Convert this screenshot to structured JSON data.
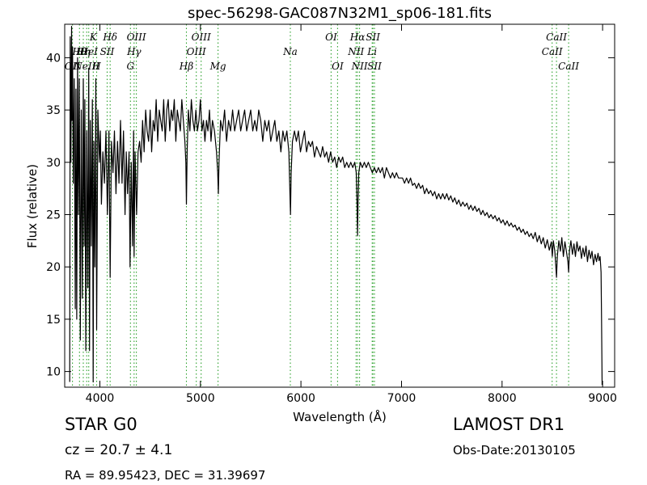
{
  "chart_data": {
    "type": "line",
    "title": "spec-56298-GAC087N32M1_sp06-181.fits",
    "xlabel": "Wavelength (Å)",
    "ylabel": "Flux (relative)",
    "xlim": [
      3650,
      9120
    ],
    "ylim": [
      8.5,
      43.2
    ],
    "xticks": [
      4000,
      5000,
      6000,
      7000,
      8000,
      9000
    ],
    "yticks": [
      10,
      15,
      20,
      25,
      30,
      35,
      40
    ],
    "grid": false,
    "line_color": "#000000",
    "marker_color": "#2ca02c",
    "spectrum": [
      [
        3700,
        9
      ],
      [
        3705,
        42
      ],
      [
        3712,
        30
      ],
      [
        3718,
        43
      ],
      [
        3722,
        34
      ],
      [
        3728,
        41
      ],
      [
        3735,
        28
      ],
      [
        3745,
        38
      ],
      [
        3755,
        16
      ],
      [
        3762,
        37
      ],
      [
        3770,
        15
      ],
      [
        3778,
        40
      ],
      [
        3786,
        25
      ],
      [
        3795,
        38
      ],
      [
        3805,
        13
      ],
      [
        3815,
        35
      ],
      [
        3825,
        17
      ],
      [
        3835,
        38
      ],
      [
        3843,
        22
      ],
      [
        3850,
        36
      ],
      [
        3860,
        12
      ],
      [
        3870,
        33
      ],
      [
        3880,
        18
      ],
      [
        3889,
        39
      ],
      [
        3897,
        12
      ],
      [
        3905,
        34
      ],
      [
        3915,
        22
      ],
      [
        3925,
        36
      ],
      [
        3933,
        9
      ],
      [
        3940,
        32
      ],
      [
        3950,
        20
      ],
      [
        3960,
        38
      ],
      [
        3968,
        14
      ],
      [
        3980,
        35
      ],
      [
        3995,
        30
      ],
      [
        4005,
        33
      ],
      [
        4015,
        26
      ],
      [
        4030,
        31
      ],
      [
        4045,
        28
      ],
      [
        4060,
        33
      ],
      [
        4075,
        25
      ],
      [
        4090,
        33
      ],
      [
        4102,
        19
      ],
      [
        4115,
        32
      ],
      [
        4130,
        29
      ],
      [
        4145,
        33
      ],
      [
        4160,
        27
      ],
      [
        4175,
        32
      ],
      [
        4190,
        28
      ],
      [
        4205,
        34
      ],
      [
        4220,
        28
      ],
      [
        4235,
        33
      ],
      [
        4250,
        25
      ],
      [
        4262,
        31
      ],
      [
        4275,
        27
      ],
      [
        4290,
        31
      ],
      [
        4300,
        20
      ],
      [
        4312,
        30
      ],
      [
        4325,
        22
      ],
      [
        4335,
        33
      ],
      [
        4340,
        21
      ],
      [
        4350,
        31
      ],
      [
        4365,
        25
      ],
      [
        4380,
        31
      ],
      [
        4395,
        32
      ],
      [
        4410,
        30
      ],
      [
        4425,
        34
      ],
      [
        4440,
        31
      ],
      [
        4455,
        35
      ],
      [
        4470,
        33
      ],
      [
        4485,
        32
      ],
      [
        4500,
        35
      ],
      [
        4515,
        31
      ],
      [
        4530,
        34
      ],
      [
        4545,
        33
      ],
      [
        4560,
        36
      ],
      [
        4575,
        32
      ],
      [
        4590,
        35
      ],
      [
        4605,
        34
      ],
      [
        4620,
        33
      ],
      [
        4635,
        36
      ],
      [
        4650,
        32
      ],
      [
        4665,
        35
      ],
      [
        4680,
        36
      ],
      [
        4695,
        33
      ],
      [
        4710,
        35
      ],
      [
        4725,
        34
      ],
      [
        4740,
        36
      ],
      [
        4755,
        32
      ],
      [
        4770,
        35
      ],
      [
        4785,
        34
      ],
      [
        4800,
        33
      ],
      [
        4815,
        36
      ],
      [
        4830,
        34
      ],
      [
        4845,
        32
      ],
      [
        4855,
        30
      ],
      [
        4861,
        26
      ],
      [
        4868,
        31
      ],
      [
        4880,
        35
      ],
      [
        4895,
        33
      ],
      [
        4910,
        36
      ],
      [
        4925,
        34
      ],
      [
        4940,
        33
      ],
      [
        4955,
        35
      ],
      [
        4970,
        33
      ],
      [
        4985,
        34
      ],
      [
        5000,
        36
      ],
      [
        5015,
        33
      ],
      [
        5030,
        34
      ],
      [
        5045,
        32
      ],
      [
        5060,
        34
      ],
      [
        5075,
        33
      ],
      [
        5090,
        35
      ],
      [
        5105,
        32
      ],
      [
        5120,
        34
      ],
      [
        5140,
        33
      ],
      [
        5160,
        31
      ],
      [
        5172,
        29
      ],
      [
        5178,
        27
      ],
      [
        5185,
        30
      ],
      [
        5200,
        34
      ],
      [
        5220,
        33
      ],
      [
        5240,
        35
      ],
      [
        5260,
        32
      ],
      [
        5280,
        34
      ],
      [
        5300,
        33
      ],
      [
        5320,
        35
      ],
      [
        5340,
        33
      ],
      [
        5360,
        34
      ],
      [
        5380,
        35
      ],
      [
        5400,
        33
      ],
      [
        5420,
        34
      ],
      [
        5440,
        35
      ],
      [
        5460,
        33
      ],
      [
        5480,
        34
      ],
      [
        5500,
        35
      ],
      [
        5520,
        33
      ],
      [
        5540,
        34
      ],
      [
        5560,
        33
      ],
      [
        5580,
        35
      ],
      [
        5600,
        34
      ],
      [
        5620,
        32
      ],
      [
        5640,
        34
      ],
      [
        5660,
        33
      ],
      [
        5680,
        34
      ],
      [
        5700,
        32
      ],
      [
        5720,
        33
      ],
      [
        5740,
        34
      ],
      [
        5760,
        32
      ],
      [
        5780,
        33
      ],
      [
        5800,
        31
      ],
      [
        5820,
        33
      ],
      [
        5840,
        32
      ],
      [
        5860,
        33
      ],
      [
        5880,
        31
      ],
      [
        5890,
        27
      ],
      [
        5896,
        25
      ],
      [
        5902,
        29
      ],
      [
        5915,
        32
      ],
      [
        5935,
        33
      ],
      [
        5955,
        32
      ],
      [
        5975,
        33
      ],
      [
        5995,
        31
      ],
      [
        6015,
        32
      ],
      [
        6035,
        33
      ],
      [
        6055,
        31
      ],
      [
        6075,
        32
      ],
      [
        6095,
        31.5
      ],
      [
        6115,
        32
      ],
      [
        6135,
        30.5
      ],
      [
        6155,
        31.5
      ],
      [
        6175,
        31
      ],
      [
        6195,
        30.5
      ],
      [
        6215,
        31.5
      ],
      [
        6235,
        30.5
      ],
      [
        6255,
        31
      ],
      [
        6275,
        30
      ],
      [
        6295,
        31
      ],
      [
        6315,
        30
      ],
      [
        6335,
        30.5
      ],
      [
        6355,
        29.5
      ],
      [
        6375,
        30.5
      ],
      [
        6395,
        30
      ],
      [
        6415,
        30.5
      ],
      [
        6435,
        29.5
      ],
      [
        6455,
        30
      ],
      [
        6475,
        29.5
      ],
      [
        6495,
        30
      ],
      [
        6515,
        29.5
      ],
      [
        6535,
        30
      ],
      [
        6550,
        29
      ],
      [
        6558,
        26
      ],
      [
        6563,
        23
      ],
      [
        6568,
        26
      ],
      [
        6575,
        29
      ],
      [
        6590,
        30
      ],
      [
        6610,
        29.5
      ],
      [
        6630,
        30
      ],
      [
        6650,
        29.5
      ],
      [
        6670,
        30
      ],
      [
        6690,
        29.5
      ],
      [
        6710,
        29
      ],
      [
        6730,
        29.5
      ],
      [
        6750,
        29
      ],
      [
        6770,
        29.5
      ],
      [
        6790,
        29
      ],
      [
        6810,
        29.5
      ],
      [
        6830,
        28.5
      ],
      [
        6850,
        29.5
      ],
      [
        6870,
        29
      ],
      [
        6890,
        28.5
      ],
      [
        6910,
        29
      ],
      [
        6930,
        28.5
      ],
      [
        6950,
        29
      ],
      [
        6970,
        28.5
      ],
      [
        6990,
        28.5
      ],
      [
        7010,
        28.5
      ],
      [
        7030,
        28
      ],
      [
        7050,
        28.5
      ],
      [
        7070,
        28
      ],
      [
        7090,
        28.5
      ],
      [
        7110,
        27.8
      ],
      [
        7130,
        28
      ],
      [
        7150,
        27.5
      ],
      [
        7170,
        28
      ],
      [
        7190,
        27.5
      ],
      [
        7210,
        27.8
      ],
      [
        7230,
        27
      ],
      [
        7250,
        27.5
      ],
      [
        7270,
        27
      ],
      [
        7290,
        27.3
      ],
      [
        7310,
        26.8
      ],
      [
        7330,
        27.2
      ],
      [
        7350,
        26.5
      ],
      [
        7370,
        27
      ],
      [
        7390,
        26.5
      ],
      [
        7410,
        27
      ],
      [
        7430,
        26.5
      ],
      [
        7450,
        27
      ],
      [
        7470,
        26.4
      ],
      [
        7490,
        26.8
      ],
      [
        7510,
        26.2
      ],
      [
        7530,
        26.6
      ],
      [
        7550,
        26
      ],
      [
        7570,
        26.4
      ],
      [
        7590,
        25.8
      ],
      [
        7610,
        26.2
      ],
      [
        7630,
        25.8
      ],
      [
        7650,
        26.1
      ],
      [
        7670,
        25.5
      ],
      [
        7690,
        25.9
      ],
      [
        7710,
        25.4
      ],
      [
        7730,
        25.8
      ],
      [
        7750,
        25.3
      ],
      [
        7770,
        25.6
      ],
      [
        7790,
        25
      ],
      [
        7810,
        25.4
      ],
      [
        7830,
        24.9
      ],
      [
        7850,
        25.2
      ],
      [
        7870,
        24.7
      ],
      [
        7890,
        25
      ],
      [
        7910,
        24.6
      ],
      [
        7930,
        24.9
      ],
      [
        7950,
        24.4
      ],
      [
        7970,
        24.7
      ],
      [
        7990,
        24.2
      ],
      [
        8010,
        24.5
      ],
      [
        8030,
        24
      ],
      [
        8050,
        24.4
      ],
      [
        8070,
        23.9
      ],
      [
        8090,
        24.2
      ],
      [
        8110,
        23.8
      ],
      [
        8130,
        24
      ],
      [
        8150,
        23.5
      ],
      [
        8170,
        23.8
      ],
      [
        8190,
        23.3
      ],
      [
        8210,
        23.6
      ],
      [
        8230,
        23.1
      ],
      [
        8250,
        23.4
      ],
      [
        8270,
        22.9
      ],
      [
        8290,
        23.2
      ],
      [
        8310,
        22.7
      ],
      [
        8330,
        23.3
      ],
      [
        8350,
        22.4
      ],
      [
        8370,
        23
      ],
      [
        8390,
        22.2
      ],
      [
        8410,
        22.8
      ],
      [
        8430,
        21.8
      ],
      [
        8450,
        22.6
      ],
      [
        8470,
        21.6
      ],
      [
        8490,
        22.4
      ],
      [
        8500,
        21
      ],
      [
        8510,
        22.5
      ],
      [
        8525,
        21.5
      ],
      [
        8535,
        20
      ],
      [
        8542,
        19
      ],
      [
        8550,
        21
      ],
      [
        8565,
        22.5
      ],
      [
        8580,
        21.5
      ],
      [
        8595,
        22.8
      ],
      [
        8610,
        21
      ],
      [
        8625,
        22.4
      ],
      [
        8640,
        21.5
      ],
      [
        8655,
        20.5
      ],
      [
        8662,
        19.5
      ],
      [
        8670,
        21.5
      ],
      [
        8685,
        22.5
      ],
      [
        8700,
        21.2
      ],
      [
        8715,
        22.2
      ],
      [
        8730,
        21
      ],
      [
        8745,
        22.4
      ],
      [
        8760,
        21.5
      ],
      [
        8775,
        22
      ],
      [
        8790,
        20.8
      ],
      [
        8805,
        21.8
      ],
      [
        8820,
        21
      ],
      [
        8835,
        22
      ],
      [
        8850,
        20.5
      ],
      [
        8865,
        21.6
      ],
      [
        8880,
        20.8
      ],
      [
        8895,
        21.5
      ],
      [
        8910,
        20.2
      ],
      [
        8925,
        21.2
      ],
      [
        8940,
        20.5
      ],
      [
        8955,
        21.3
      ],
      [
        8965,
        20.6
      ],
      [
        8975,
        21
      ],
      [
        8985,
        19.5
      ],
      [
        8990,
        15
      ],
      [
        8995,
        8.7
      ]
    ],
    "lines": [
      {
        "w": 3727,
        "row": 3,
        "label": "OII"
      },
      {
        "w": 3797,
        "row": 2,
        "label": "Hθ"
      },
      {
        "w": 3835,
        "row": 2,
        "label": "Hη"
      },
      {
        "w": 3869,
        "row": 3,
        "label": "NeIII"
      },
      {
        "w": 3889,
        "row": 2,
        "label": "HeI"
      },
      {
        "w": 3934,
        "row": 1,
        "label": "K"
      },
      {
        "w": 3968,
        "row": 3,
        "label": "H"
      },
      {
        "w": 4072,
        "row": 2,
        "label": "SII"
      },
      {
        "w": 4102,
        "row": 1,
        "label": "Hδ"
      },
      {
        "w": 4304,
        "row": 3,
        "label": "G"
      },
      {
        "w": 4340,
        "row": 2,
        "label": "Hγ"
      },
      {
        "w": 4363,
        "row": 1,
        "label": "OIII"
      },
      {
        "w": 4861,
        "row": 3,
        "label": "Hβ"
      },
      {
        "w": 4959,
        "row": 2,
        "label": "OIII"
      },
      {
        "w": 5007,
        "row": 1,
        "label": "OIII"
      },
      {
        "w": 5175,
        "row": 3,
        "label": "Mg"
      },
      {
        "w": 5894,
        "row": 2,
        "label": "Na"
      },
      {
        "w": 6300,
        "row": 1,
        "label": "OI"
      },
      {
        "w": 6364,
        "row": 3,
        "label": "OI"
      },
      {
        "w": 6548,
        "row": 2,
        "label": "NII"
      },
      {
        "w": 6563,
        "row": 1,
        "label": "Hα"
      },
      {
        "w": 6583,
        "row": 3,
        "label": "NII"
      },
      {
        "w": 6708,
        "row": 2,
        "label": "Li"
      },
      {
        "w": 6716,
        "row": 1,
        "label": "SII"
      },
      {
        "w": 6731,
        "row": 3,
        "label": "SII"
      },
      {
        "w": 8498,
        "row": 2,
        "label": "CaII"
      },
      {
        "w": 8542,
        "row": 1,
        "label": "CaII"
      },
      {
        "w": 8662,
        "row": 3,
        "label": "CaII"
      }
    ]
  },
  "info": {
    "object_class": "STAR   G0",
    "redshift": "cz = 20.7 ± 4.1",
    "coordinates": "RA = 89.95423, DEC = 31.39697",
    "survey": "LAMOST DR1",
    "obs_date": "Obs-Date:20130105"
  }
}
